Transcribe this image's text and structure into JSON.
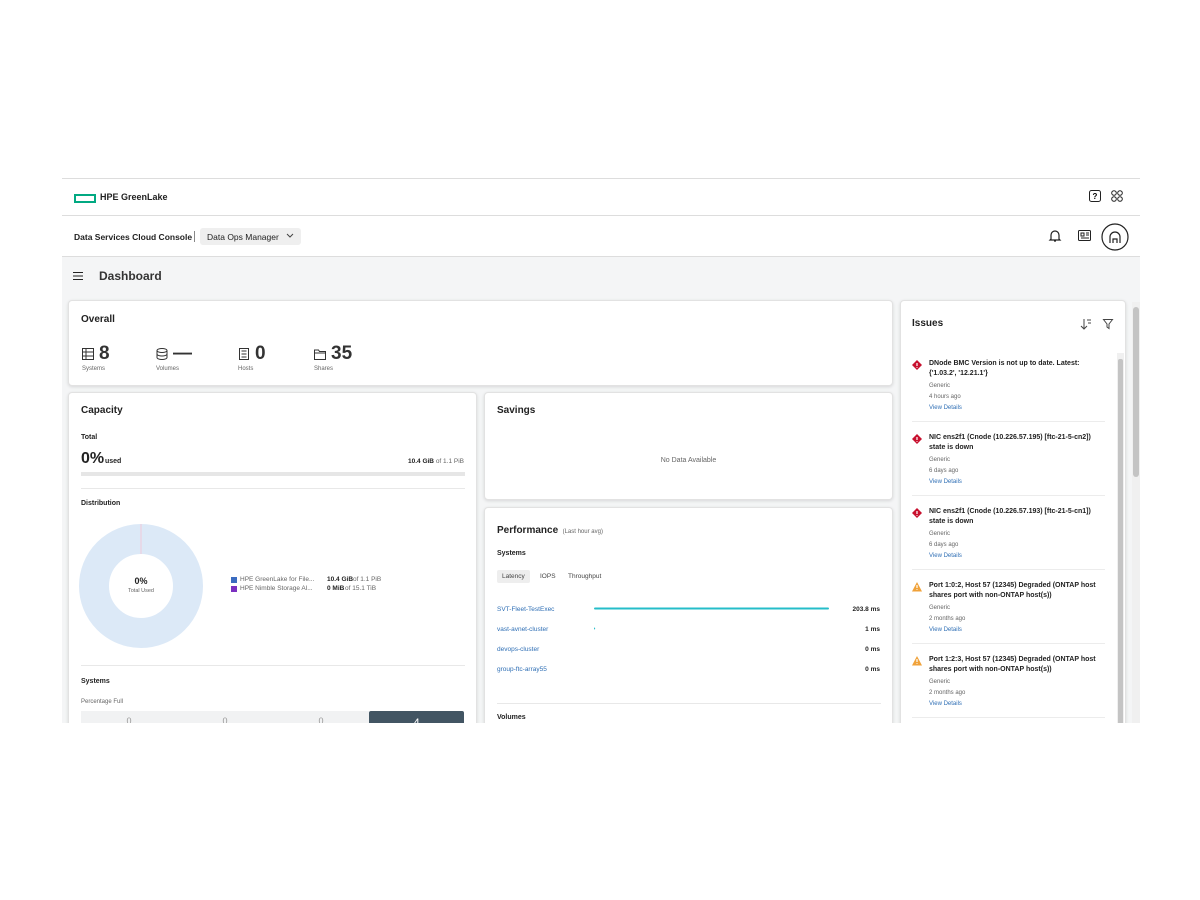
{
  "header": {
    "brand": "HPE GreenLake",
    "console": "Data Services Cloud Console",
    "app": "Data Ops Manager"
  },
  "page": {
    "title": "Dashboard"
  },
  "overall": {
    "title": "Overall",
    "stats": [
      {
        "value": "8",
        "label": "Systems"
      },
      {
        "value": "—",
        "label": "Volumes"
      },
      {
        "value": "0",
        "label": "Hosts"
      },
      {
        "value": "35",
        "label": "Shares"
      }
    ]
  },
  "capacity": {
    "title": "Capacity",
    "total_label": "Total",
    "used_percent": "0%",
    "used_label": "used",
    "amount": "10.4 GiB",
    "of_total": "of 1.1 PiB",
    "distribution_title": "Distribution",
    "donut_value": "0%",
    "donut_label": "Total Used",
    "legend": [
      {
        "name": "HPE GreenLake for File...",
        "amount": "10.4 GiB",
        "of_total": "of 1.1 PiB",
        "color": "#3b6cc0"
      },
      {
        "name": "HPE Nimble Storage Al...",
        "amount": "0 MiB",
        "of_total": "of 15.1 TiB",
        "color": "#7b30c0"
      }
    ],
    "systems_title": "Systems",
    "systems_subtitle": "Percentage Full",
    "systems_bars": [
      "0",
      "0",
      "0",
      "4"
    ]
  },
  "savings": {
    "title": "Savings",
    "empty": "No Data Available"
  },
  "performance": {
    "title": "Performance",
    "subtitle": "(Last hour avg)",
    "systems_title": "Systems",
    "tabs": [
      "Latency",
      "IOPS",
      "Throughput"
    ],
    "rows": [
      {
        "name": "SVT-Fleet-TestExec",
        "value": 203.8,
        "label": "203.8 ms"
      },
      {
        "name": "vast-avnet-cluster",
        "value": 1,
        "label": "1 ms"
      },
      {
        "name": "devops-cluster",
        "value": 0,
        "label": "0 ms"
      },
      {
        "name": "group-ftc-array55",
        "value": 0,
        "label": "0 ms"
      }
    ],
    "volumes_title": "Volumes"
  },
  "issues": {
    "title": "Issues",
    "items": [
      {
        "title": "DNode BMC Version is not up to date. Latest: {'1.03.2', '12.21.1'}",
        "category": "Generic",
        "time": "4 hours ago",
        "link": "View Details",
        "severity": "critical"
      },
      {
        "title": "NIC ens2f1 (Cnode (10.226.57.195) [ftc-21-5-cn2]) state is down",
        "category": "Generic",
        "time": "6 days ago",
        "link": "View Details",
        "severity": "critical"
      },
      {
        "title": "NIC ens2f1 (Cnode (10.226.57.193) [ftc-21-5-cn1]) state is down",
        "category": "Generic",
        "time": "6 days ago",
        "link": "View Details",
        "severity": "critical"
      },
      {
        "title": "Port 1:0:2, Host 57 (12345) Degraded (ONTAP host shares port with non-ONTAP host(s))",
        "category": "Generic",
        "time": "2 months ago",
        "link": "View Details",
        "severity": "warning"
      },
      {
        "title": "Port 1:2:3, Host 57 (12345) Degraded (ONTAP host shares port with non-ONTAP host(s))",
        "category": "Generic",
        "time": "2 months ago",
        "link": "View Details",
        "severity": "warning"
      }
    ]
  }
}
